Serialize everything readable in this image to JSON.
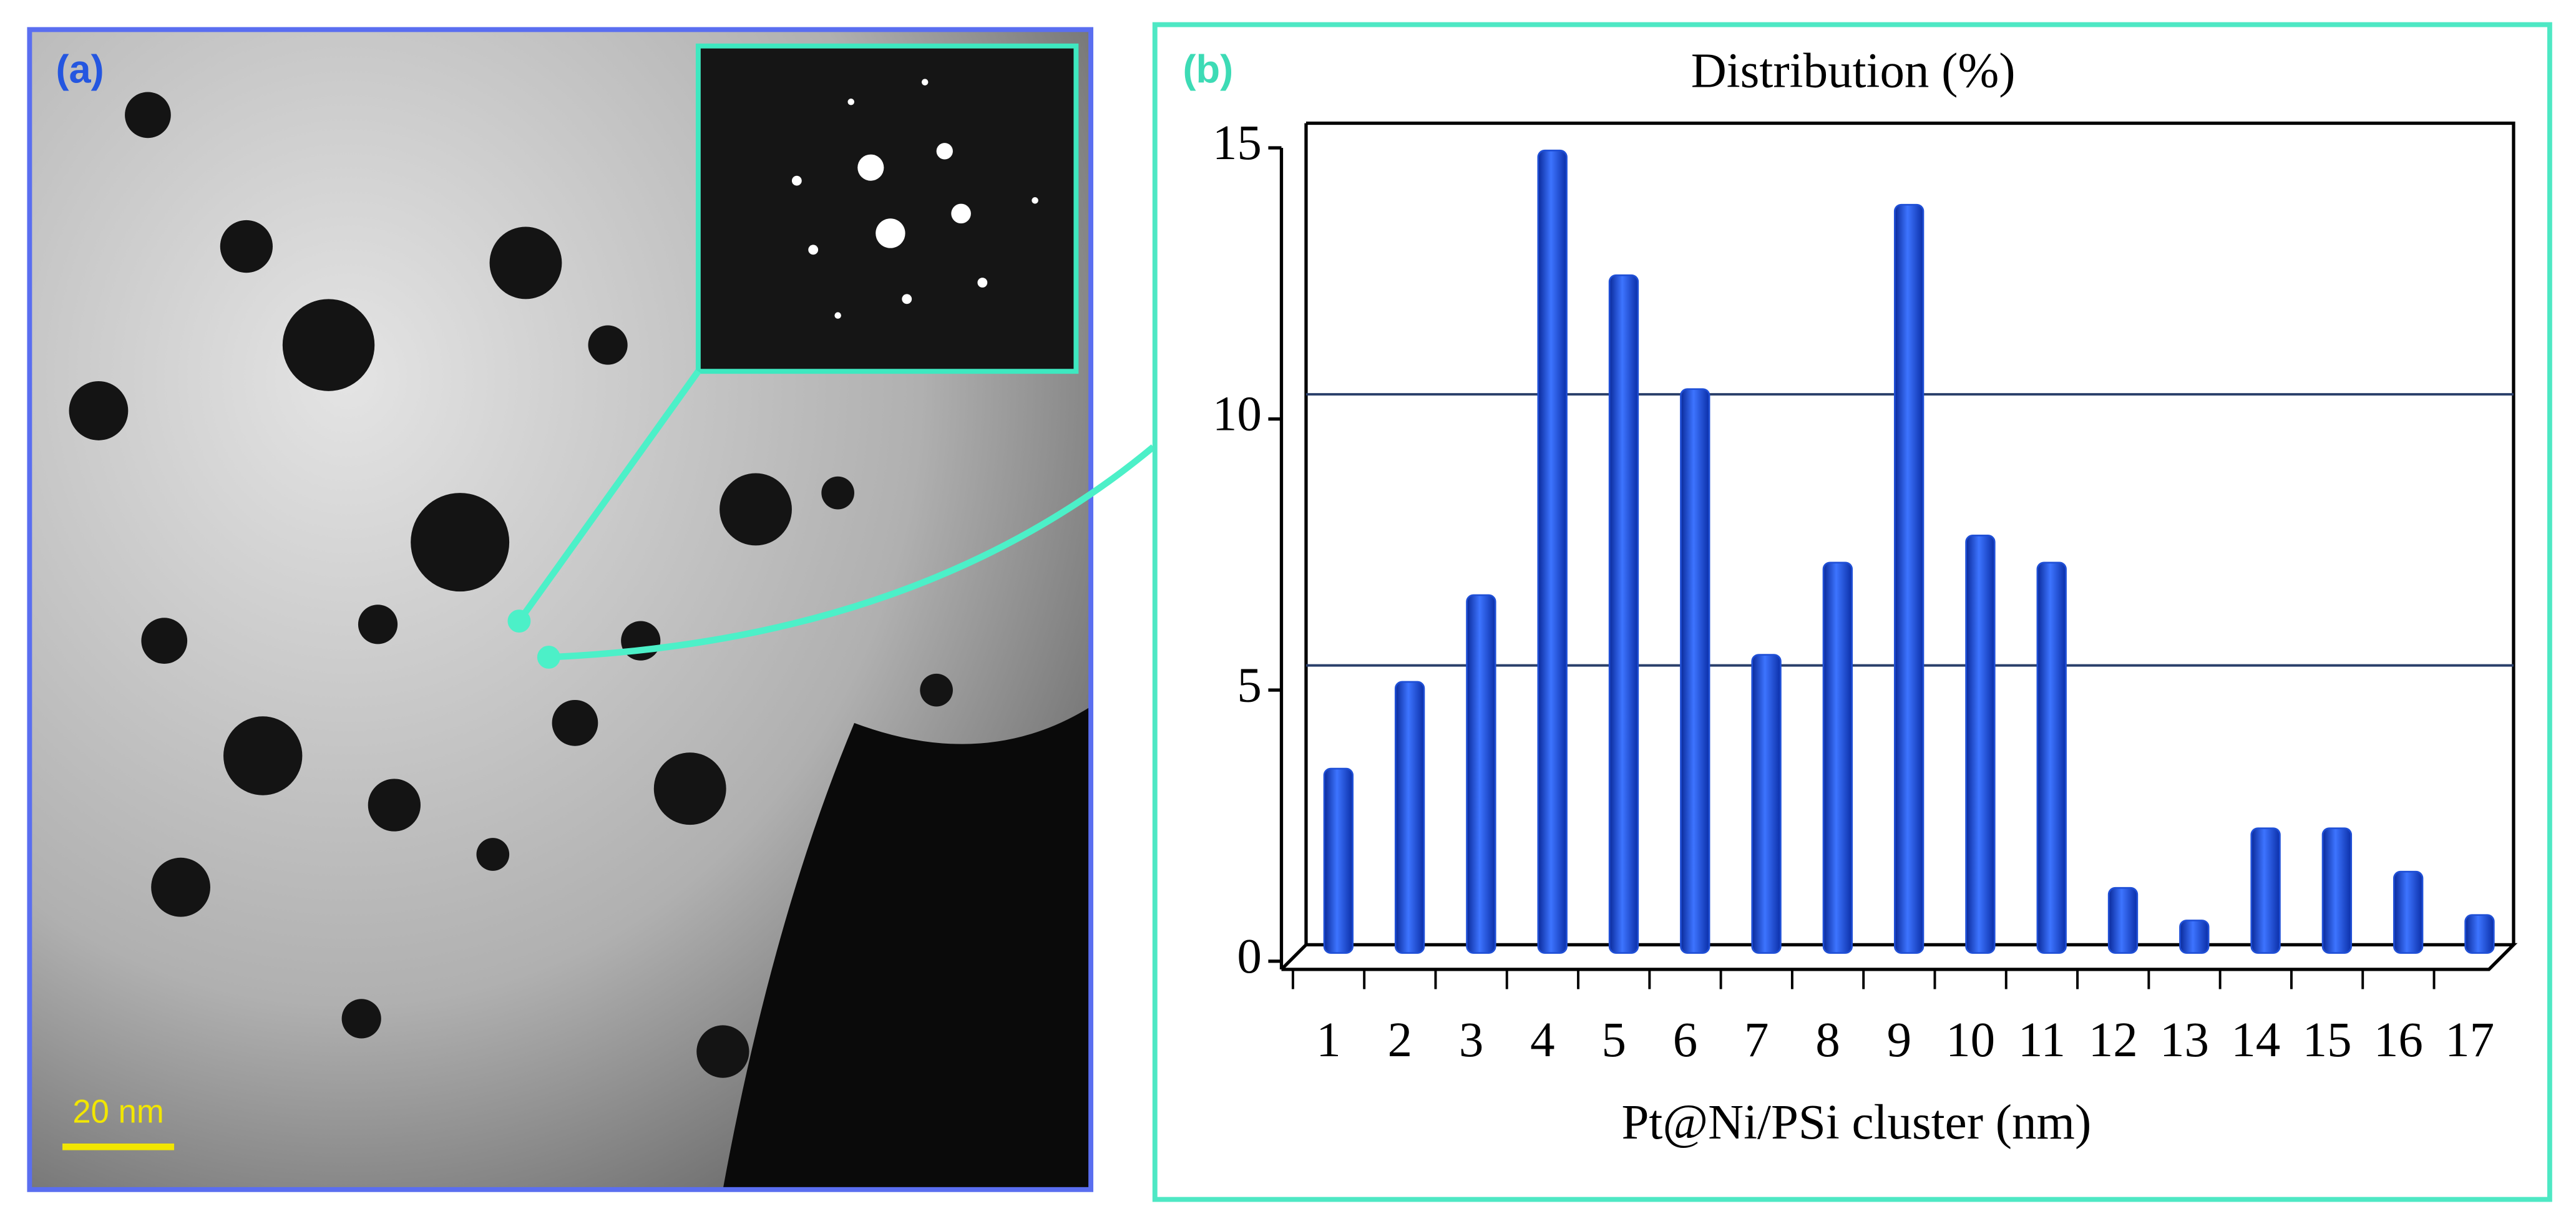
{
  "panel_labels": [
    "(a)",
    "(b)"
  ],
  "scale_bar": "20 nm",
  "chart_data": {
    "type": "bar",
    "title": "Distribution (%)",
    "x_label": "Pt@Ni/PSi cluster (nm)",
    "categories": [
      "1",
      "2",
      "3",
      "4",
      "5",
      "6",
      "7",
      "8",
      "9",
      "10",
      "11",
      "12",
      "13",
      "14",
      "15",
      "16",
      "17"
    ],
    "values": [
      3.4,
      5.0,
      6.6,
      14.8,
      12.5,
      10.4,
      5.5,
      7.2,
      13.8,
      7.7,
      7.2,
      1.2,
      0.6,
      2.3,
      2.3,
      1.5,
      0.7
    ],
    "color": "#1f4fd6",
    "ylim": [
      0,
      15
    ],
    "yticks": [
      0,
      5,
      10,
      15
    ],
    "grid": true
  }
}
